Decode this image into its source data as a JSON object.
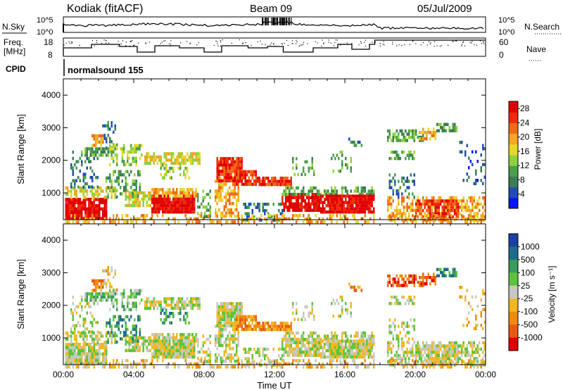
{
  "header": {
    "station": "Kodiak (fitACF)",
    "beam": "Beam 09",
    "date": "05/Jul/2009"
  },
  "status_panels": {
    "nsky": {
      "left_label": "N.Sky",
      "right_label": "N.Search",
      "left_ticks": [
        "10^5",
        "10^0"
      ],
      "right_ticks": [
        "10^5",
        "10^0"
      ]
    },
    "freq": {
      "left_label_1": "Freq.",
      "left_label_2": "[MHz]",
      "right_label": "Nave",
      "left_ticks": [
        "18",
        "8"
      ],
      "right_ticks": [
        "60",
        "0"
      ]
    },
    "cpid": {
      "label": "CPID",
      "value": "normalsound 155"
    }
  },
  "chart_data": [
    {
      "type": "heatmap",
      "name": "power",
      "xlabel": "Time UT",
      "ylabel": "Slant Range [km]",
      "xlim": [
        0,
        24
      ],
      "ylim": [
        180,
        4500
      ],
      "x_tick_labels": [
        "00:00",
        "04:00",
        "08:00",
        "12:00",
        "16:00",
        "20:00",
        "00:00"
      ],
      "y_tick_labels": [
        "1000",
        "2000",
        "3000",
        "4000"
      ],
      "colorbar": {
        "label": "Power [dB]",
        "ticks": [
          "28",
          "24",
          "20",
          "16",
          "12",
          "8",
          "4"
        ],
        "range": [
          0,
          30
        ],
        "colors": [
          "#0a14ff",
          "#1f4db8",
          "#3a7d52",
          "#49a14a",
          "#8fd13c",
          "#e8d62a",
          "#f5a623",
          "#f06b14",
          "#ee2a0c",
          "#e00000"
        ]
      },
      "data_gap_hours": [
        17.8,
        18.4
      ]
    },
    {
      "type": "heatmap",
      "name": "velocity",
      "xlabel": "Time UT",
      "ylabel": "Slant Range [km]",
      "xlim": [
        0,
        24
      ],
      "ylim": [
        180,
        4500
      ],
      "x_tick_labels": [
        "00:00",
        "04:00",
        "08:00",
        "12:00",
        "16:00",
        "20:00",
        "00:00"
      ],
      "y_tick_labels": [
        "1000",
        "2000",
        "3000",
        "4000"
      ],
      "colorbar": {
        "label": "Velocity [m s⁻¹]",
        "ticks": [
          "1000",
          "500",
          "100",
          "25",
          "-25",
          "-100",
          "-500",
          "-1000"
        ],
        "colors": [
          "#1b3fa8",
          "#1e6b8c",
          "#3a9a5c",
          "#5cc43a",
          "#c8c8c0",
          "#f0b820",
          "#f08a10",
          "#e85a10",
          "#e00000"
        ]
      },
      "data_gap_hours": [
        17.8,
        18.4
      ]
    }
  ]
}
